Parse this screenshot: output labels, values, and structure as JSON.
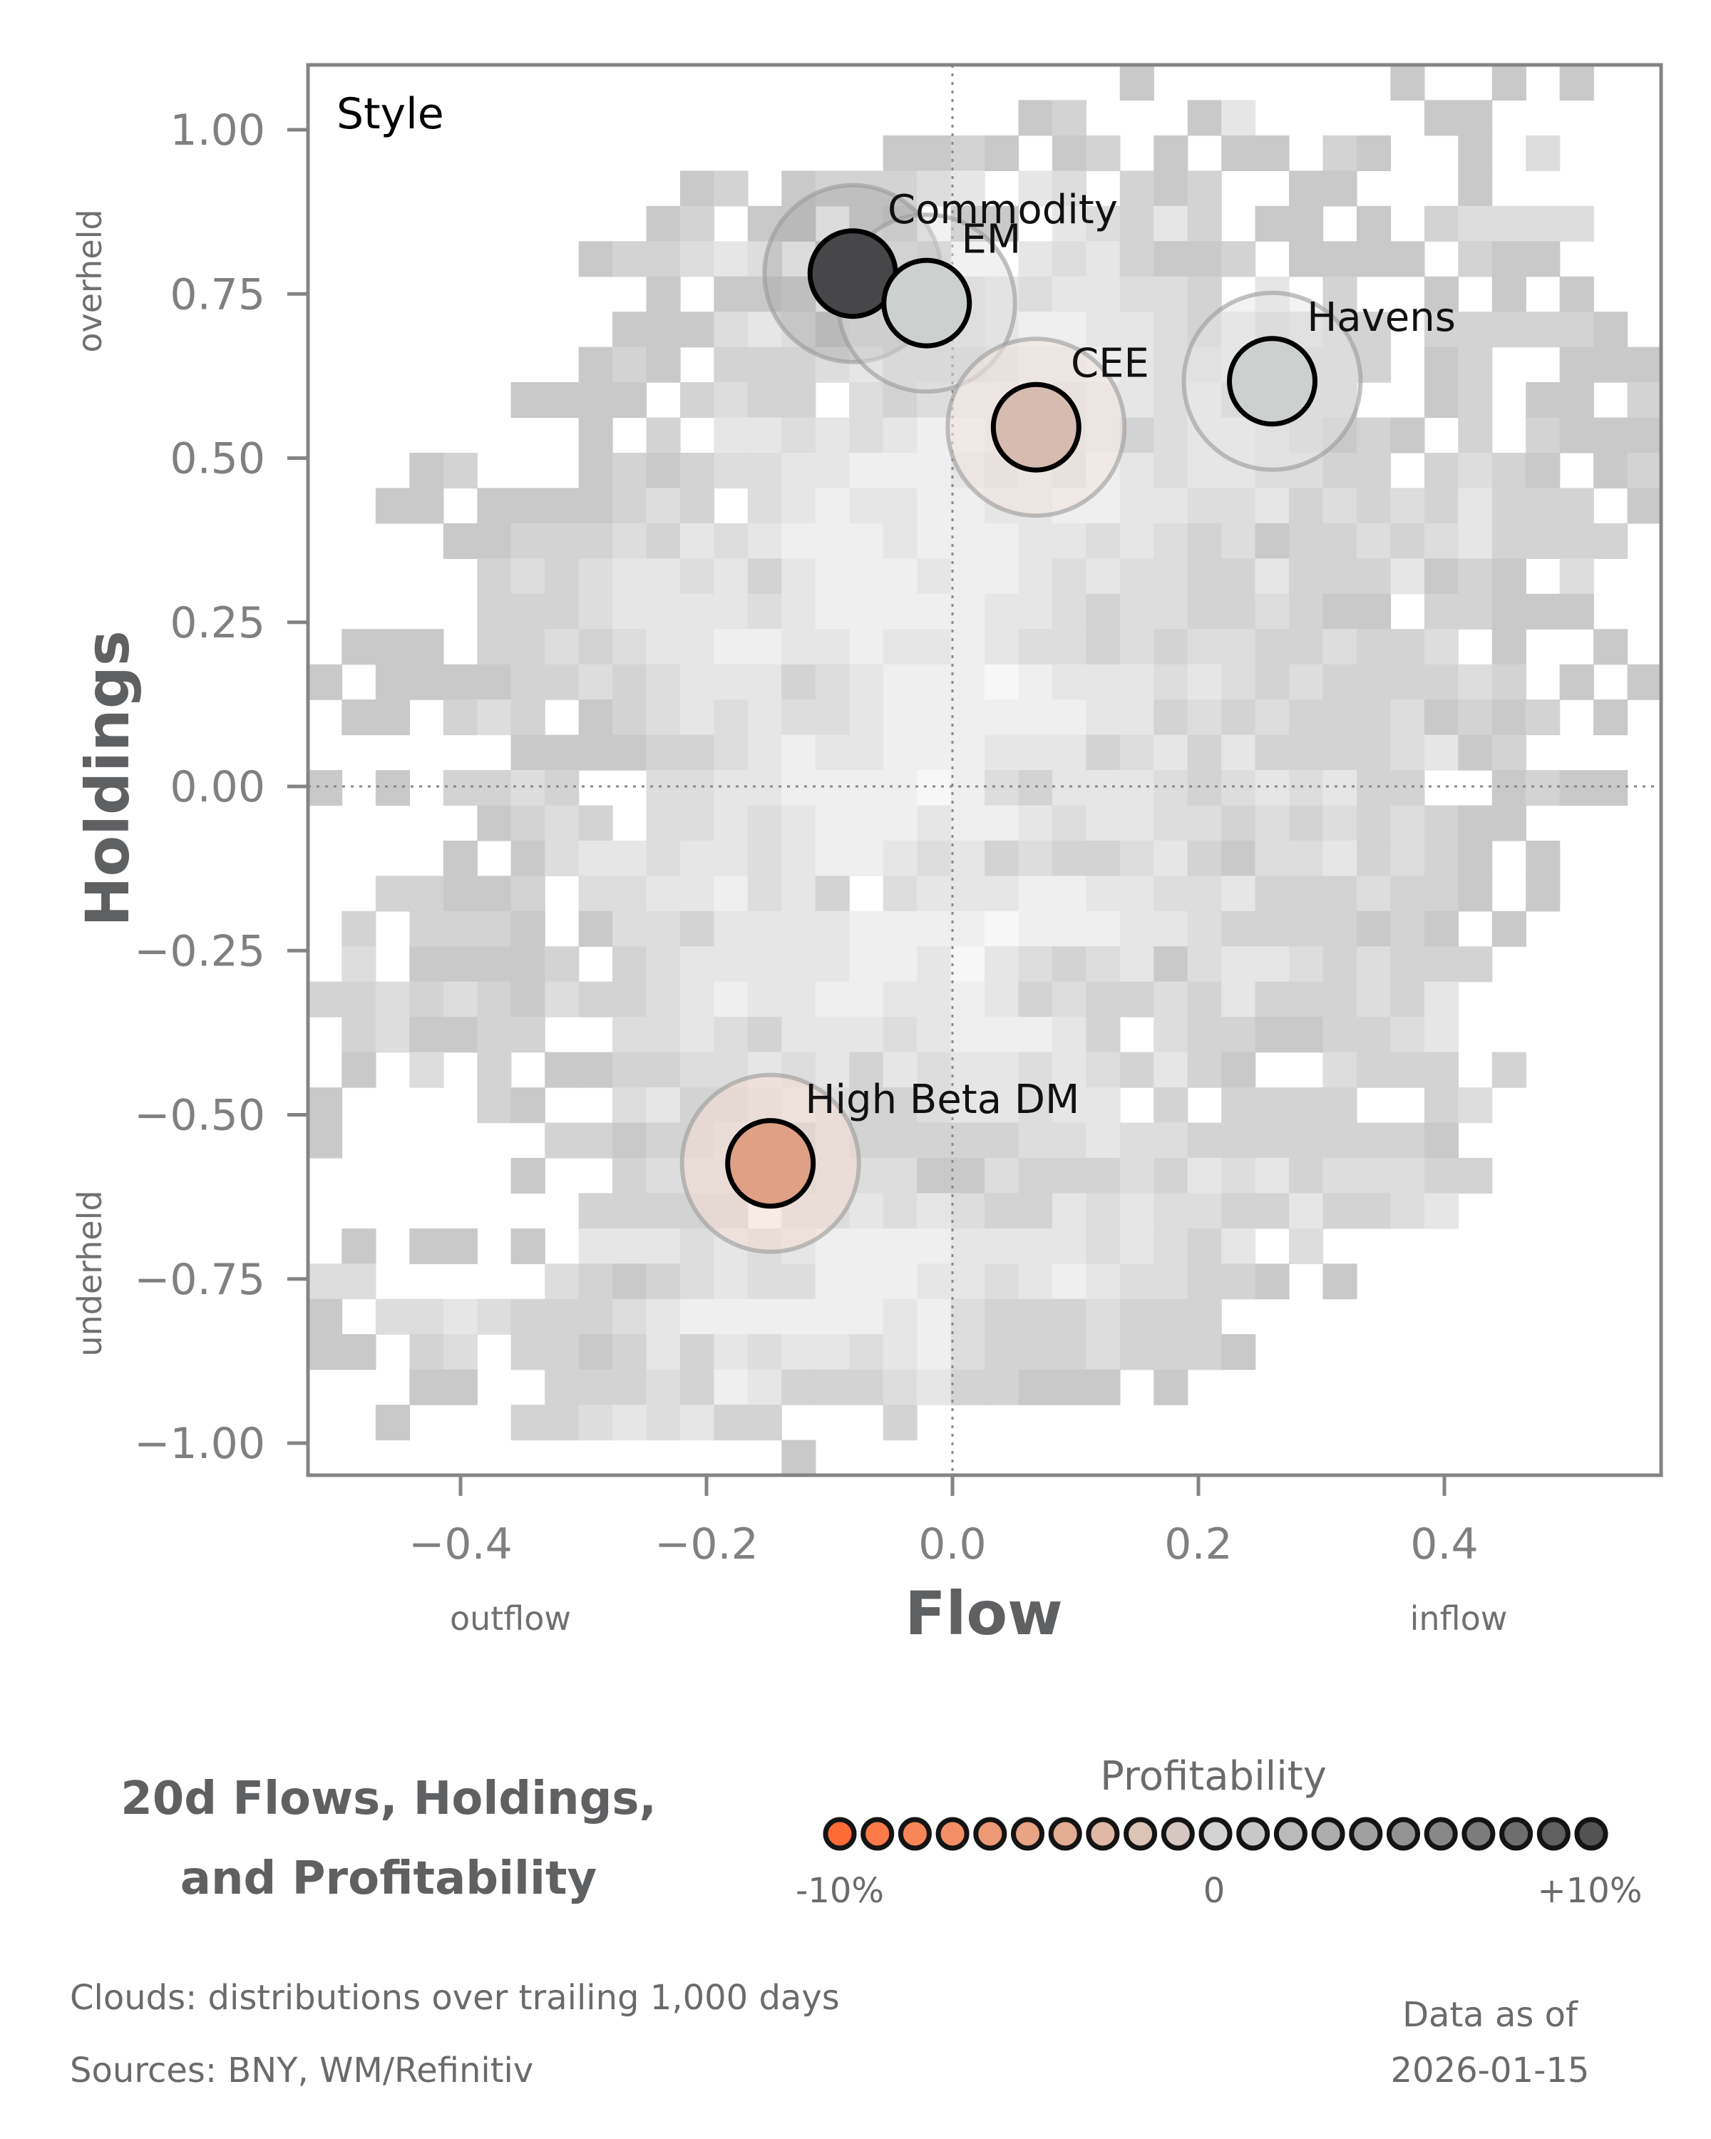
{
  "chart_data": {
    "type": "scatter",
    "title": "20d Flows, Holdings, and Profitability",
    "title_lines": [
      "20d Flows, Holdings,",
      "and Profitability"
    ],
    "panel_label": "Style",
    "xlabel": "Flow",
    "ylabel": "Holdings",
    "x_sublabels": {
      "left": "outflow",
      "right": "inflow"
    },
    "y_sublabels": {
      "top": "overheld",
      "bottom": "underheld"
    },
    "xlim": [
      -0.525,
      0.575
    ],
    "ylim": [
      -1.047,
      1.097
    ],
    "x_ticks": [
      -0.4,
      -0.2,
      0.0,
      0.2,
      0.4
    ],
    "x_tick_labels": [
      "−0.4",
      "−0.2",
      "0.0",
      "0.2",
      "0.4"
    ],
    "y_ticks": [
      1.0,
      0.75,
      0.5,
      0.25,
      0.0,
      -0.25,
      -0.5,
      -0.75,
      -1.0
    ],
    "y_tick_labels": [
      "1.00",
      "0.75",
      "0.50",
      "0.25",
      "0.00",
      "−0.25",
      "−0.50",
      "−0.75",
      "−1.00"
    ],
    "reference_lines": {
      "x": 0.0,
      "y": 0.0,
      "style": "dotted"
    },
    "grid": false,
    "points": [
      {
        "name": "Commodity",
        "x": -0.081,
        "y": 0.781,
        "profitability_pct": 9.0,
        "color": "#47474a",
        "label_dx": 0.012,
        "label_dy": 0.055
      },
      {
        "name": "EM",
        "x": -0.021,
        "y": 0.736,
        "profitability_pct": 1.0,
        "color": "#ccd0cf",
        "label_dx": 0.012,
        "label_dy": 0.055
      },
      {
        "name": "CEE",
        "x": 0.068,
        "y": 0.547,
        "profitability_pct": -2.0,
        "color": "#d6bbb1",
        "label_dx": 0.012,
        "label_dy": 0.055
      },
      {
        "name": "Havens",
        "x": 0.26,
        "y": 0.617,
        "profitability_pct": 1.0,
        "color": "#ccd0cf",
        "label_dx": 0.012,
        "label_dy": 0.055
      },
      {
        "name": "High Beta DM",
        "x": -0.148,
        "y": -0.574,
        "profitability_pct": -6.0,
        "color": "#e0a086",
        "label_dx": 0.012,
        "label_dy": 0.055
      }
    ],
    "halos": [
      {
        "name": "Commodity",
        "fill": "#9a9a9c",
        "opacity": 0.35
      },
      {
        "name": "EM",
        "fill": "#dfe1e0",
        "opacity": 0.45
      },
      {
        "name": "CEE",
        "fill": "#f0e4df",
        "opacity": 0.6
      },
      {
        "name": "Havens",
        "fill": "#e3e5e4",
        "opacity": 0.5
      },
      {
        "name": "High Beta DM",
        "fill": "#f3ddd5",
        "opacity": 0.6
      }
    ],
    "cloud": {
      "description": "distributions over trailing 1,000 days",
      "cols": 40,
      "rows": 40,
      "palette": {
        "a": "#c9c9c9",
        "b": "#d3d3d3",
        "c": "#dddddd",
        "d": "#e6e6e6",
        "e": "#efefef",
        "f": "#f7f7f7"
      },
      "grid": [
        "........................a.......a..a.a..",
        ".....................ab...ad.....aa.....",
        ".................aaba.ab.a.aa.ba..a.c...",
        "...........ab.abbbcd.dc.bab..aa...a.....",
        "..........ab.aa.ba.aa.dcbdb.aa.a.bcccc..",
        "........abbcdc.accb..dcdbaab.aaaa.baa...",
        "..........a.aab.aabcdcddccb.d.b..a.a.a..",
        ".........aaacdcabbbcdeeddcbdbcbb.bbbbba.",
        "........aba.bbbcdbbbcddedccdcbbb.ab..aaa",
        "......aaaa.bcbb.cbcddecddcdbbbb..ab.aa.b",
        "........a.b.ddcdcdeeddcdbcddcbaba.b.baaa",
        "...ab...ababccddeeedcdcedcddccbb.bcba.ab",
        "..aa.aaaabcb.cdeddeeddeeddccdbcbcbdbbb.a",
        "....aabbbcbdcdeeedeeeddcdcbcabbcbcdbbbb.",
        ".....bcbcddcdbdeeedeedcdccbbdbbbdaba.c..",
        ".....bbbcddddcdeeeeeddcbccbbcbaa.bbaaa..",
        ".aaa.bbcbcddeeddeddedccbcbccbbcbbc.a..a.",
        "a.aaaabbcbcdddbcdeeefedddcdcbcbbbbcb.a.a",
        ".aa.bcb.abcdcdccdeeeeeeddbcbcbbbcabab.a.",
        "......aaaabbcdeddeeedddbcdbdbbbbcdab....",
        "a.a.bbcb..ccddeeeefecbdddcbcdcdbb..abaa.",
        ".....abcb.ccdcdeeedeedcddccbcbcbcbaa....",
        "....a.acddcddcdeedcdbcbbcdbaccdbcba.a...",
        "..bbaab.ccddecdb.cdddeeddccdbbbcbba.a...",
        ".b.bbba.accbddddeeeefeeeddcbbbbaba.a....",
        ".c.aaaab.bcdddddeedfdcbcdacddcbcbbb.....",
        "bbcbcbacbbcdeddeeddedbcbbcbdbbbcbd......",
        ".bcaabb..ccdcbdddcdeeedb.cbbaabbcd......",
        ".a.c.b.aabbccdcdbdcddcdcbdba..cbbb.b....",
        "a....ba..cdbbcdcbbcddcdd.b.bbbb..bc.....",
        "a......bbabbccacbbbbbccdccbbbbbbba......",
        "......a..bcccbbcccaacbbbcbdcdbcccbb.....",
        "........bbbbb.ccdcdcbbdcdccbbdbbcd......",
        ".a.aa.a.dddcdcdeeeeddddcdcbd.c..........",
        "cc.....cbabcdcceeeddcdedccbba.a.........",
        "a.ccdcbbbcdeeeeeedecbbbcbbb.............",
        "aa.bc.bbabdbdcddcdecbbbcbbba............",
        "...aa..bbbcbedbbbcdbbaaa.a..............",
        "..a...bbcdcdbb...b.......................",
        "..............a........................."
      ]
    }
  },
  "legend": {
    "title": "Profitability",
    "tick_labels": {
      "min": "-10%",
      "mid": "0",
      "max": "+10%"
    },
    "swatches": [
      "#ff6b35",
      "#fb7a48",
      "#f68558",
      "#f28f66",
      "#ec9a75",
      "#e8a484",
      "#e3ad94",
      "#dfb8a6",
      "#dbc3b6",
      "#d6c7c1",
      "#d3d3d3",
      "#c8c8c8",
      "#bababa",
      "#adadad",
      "#a0a0a0",
      "#939393",
      "#878787",
      "#7c7c7c",
      "#6e6e6e",
      "#606060",
      "#535353"
    ]
  },
  "title": {
    "line1": "20d Flows, Holdings,",
    "line2": "and Profitability"
  },
  "footnotes": {
    "clouds": "Clouds:  distributions over trailing 1,000 days",
    "sources": "Sources:  BNY, WM/Refinitiv",
    "asof_label": "Data as of",
    "asof_date": "2026-01-15"
  },
  "colors": {
    "axis": "#848484",
    "tick_text": "#808080",
    "title_text": "#5f6062",
    "bubble_edge": "#000000",
    "halo_edge": "#9a9a9a"
  }
}
